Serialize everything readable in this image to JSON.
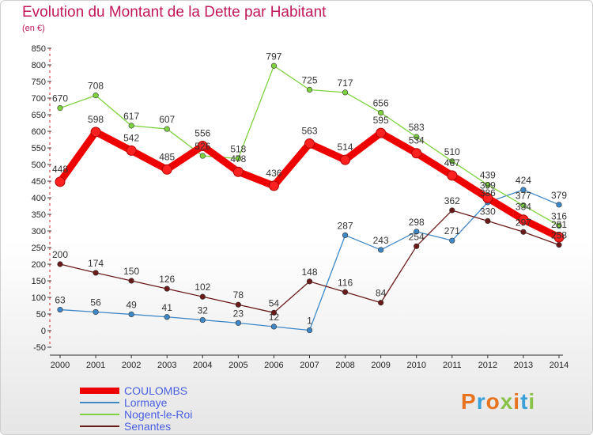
{
  "title": "Evolution du Montant de la Dette par Habitant",
  "subtitle": "(en €)",
  "logo": {
    "letters": [
      "P",
      "r",
      "o",
      "x",
      "i",
      "t",
      "i"
    ],
    "colors": [
      "#e8731f",
      "#3aa0d8",
      "#e8731f",
      "#8bc34a",
      "#e8731f",
      "#3aa0d8",
      "#8bc34a"
    ]
  },
  "chart_data": {
    "type": "line",
    "x": [
      "2000",
      "2001",
      "2002",
      "2003",
      "2004",
      "2005",
      "2006",
      "2007",
      "2008",
      "2009",
      "2010",
      "2011",
      "2012",
      "2013",
      "2014"
    ],
    "ylim": [
      -50,
      850
    ],
    "yticks": [
      -50,
      0,
      50,
      100,
      150,
      200,
      250,
      300,
      350,
      400,
      450,
      500,
      550,
      600,
      650,
      700,
      750,
      800,
      850
    ],
    "grid": false,
    "legend_position": "bottom-left",
    "series": [
      {
        "name": "COULOMBS",
        "color": "#ee0000",
        "values": [
          448,
          598,
          542,
          485,
          556,
          478,
          436,
          563,
          514,
          595,
          534,
          467,
          399,
          334,
          281
        ],
        "labels": [
          "448",
          "598",
          "542",
          "485",
          "556",
          "478",
          "436",
          "563",
          "514",
          "595",
          "534",
          "467",
          "399",
          "334",
          "281"
        ]
      },
      {
        "name": "Lormaye",
        "color": "#3f88c8",
        "values": [
          63,
          56,
          49,
          41,
          32,
          23,
          12,
          1,
          287,
          243,
          298,
          271,
          386,
          424,
          379
        ],
        "labels": [
          "63",
          "56",
          "49",
          "41",
          "32",
          "23",
          "12",
          "1",
          "287",
          "243",
          "298",
          "271",
          "386",
          "424",
          "379"
        ]
      },
      {
        "name": "Nogent-le-Roi",
        "color": "#7ed23f",
        "values": [
          670,
          708,
          617,
          607,
          526,
          518,
          797,
          725,
          717,
          656,
          583,
          510,
          439,
          377,
          316
        ],
        "labels": [
          "670",
          "708",
          "617",
          "607",
          "526",
          "518",
          "797",
          "725",
          "717",
          "656",
          "583",
          "510",
          "439",
          "377",
          "316"
        ]
      },
      {
        "name": "Senantes",
        "color": "#6b1a1a",
        "values": [
          200,
          174,
          150,
          126,
          102,
          78,
          54,
          148,
          116,
          84,
          254,
          362,
          330,
          297,
          258
        ],
        "labels": [
          "200",
          "174",
          "150",
          "126",
          "102",
          "78",
          "54",
          "148",
          "116",
          "84",
          "254",
          "362",
          "330",
          "297",
          "258"
        ]
      }
    ]
  }
}
